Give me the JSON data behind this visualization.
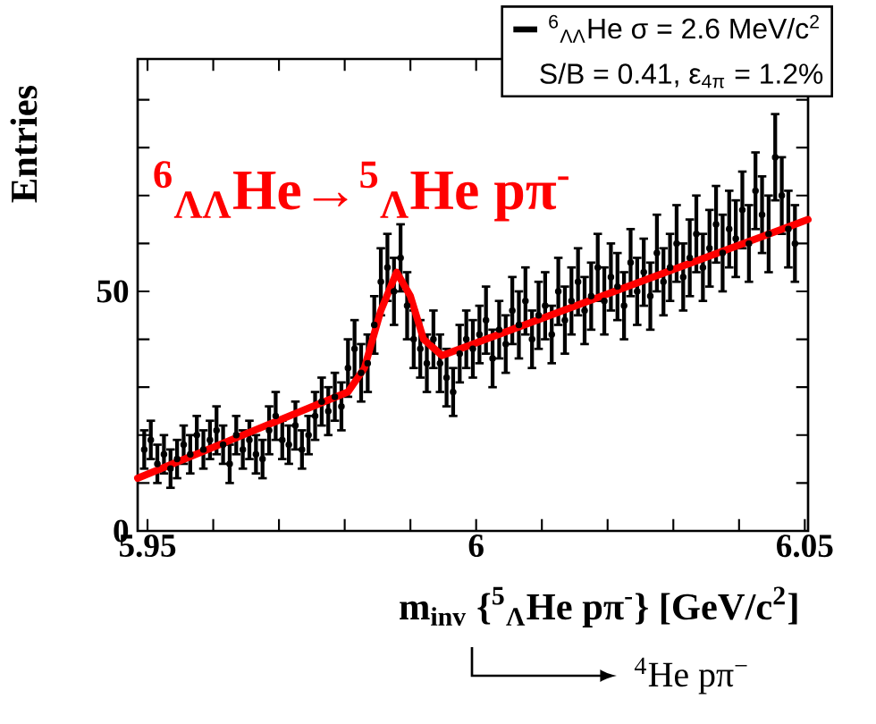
{
  "chart_data": {
    "type": "scatter",
    "xlabel": "m$_{inv}$ {$^{5}$$_{Λ}$He pπ$^{-}$} [GeV/c$^{2}$]",
    "ylabel": "Entries",
    "annotations": [
      "S/B = 0.41, ε$_{4π}$ = 1.2%",
      "$^{6}$$_{ΛΛ}$He→$^{5}$$_{Λ}$He pπ$^{-}$",
      "$^{4}$He pπ$^{−}$"
    ],
    "xlim": [
      5.9485,
      6.0505
    ],
    "ylim": [
      0,
      98.5
    ],
    "xticks": [
      5.95,
      {
        "value": 5.96,
        "label": null
      },
      {
        "value": 5.97,
        "label": null
      },
      {
        "value": 5.98,
        "label": null
      },
      {
        "value": 5.99,
        "label": null
      },
      6,
      {
        "value": 6.01,
        "label": null
      },
      {
        "value": 6.02,
        "label": null
      },
      {
        "value": 6.03,
        "label": null
      },
      {
        "value": 6.04,
        "label": null
      },
      6.05
    ],
    "yticks": [
      0,
      {
        "value": 10,
        "label": null
      },
      {
        "value": 20,
        "label": null
      },
      {
        "value": 30,
        "label": null
      },
      {
        "value": 40,
        "label": null
      },
      50,
      {
        "value": 60,
        "label": null
      },
      {
        "value": 70,
        "label": null
      },
      {
        "value": 80,
        "label": null
      },
      {
        "value": 90,
        "label": null
      }
    ],
    "legend": "top right",
    "grid": false,
    "x": [
      5.9495,
      5.9505,
      5.9515,
      5.9525,
      5.9535,
      5.9545,
      5.9555,
      5.9565,
      5.9575,
      5.9585,
      5.9595,
      5.9605,
      5.9615,
      5.9625,
      5.9635,
      5.9645,
      5.9655,
      5.9665,
      5.9675,
      5.9685,
      5.9695,
      5.9705,
      5.9715,
      5.9725,
      5.9735,
      5.9745,
      5.9755,
      5.9765,
      5.9775,
      5.9785,
      5.9795,
      5.9805,
      5.9815,
      5.9825,
      5.9835,
      5.9845,
      5.9855,
      5.9865,
      5.9875,
      5.9885,
      5.9895,
      5.9905,
      5.9915,
      5.9925,
      5.9935,
      5.9945,
      5.9955,
      5.9965,
      5.9975,
      5.9985,
      5.9995,
      6.0005,
      6.0015,
      6.0025,
      6.0035,
      6.0045,
      6.0055,
      6.0065,
      6.0075,
      6.0085,
      6.0095,
      6.0105,
      6.0115,
      6.0125,
      6.0135,
      6.0145,
      6.0155,
      6.0165,
      6.0175,
      6.0185,
      6.0195,
      6.0205,
      6.0215,
      6.0225,
      6.0235,
      6.0245,
      6.0255,
      6.0265,
      6.0275,
      6.0285,
      6.0295,
      6.0305,
      6.0315,
      6.0325,
      6.0335,
      6.0345,
      6.0355,
      6.0365,
      6.0375,
      6.0385,
      6.0395,
      6.0405,
      6.0415,
      6.0425,
      6.0435,
      6.0445,
      6.0455,
      6.0465,
      6.0475,
      6.0485
    ],
    "series": [
      {
        "name": "$^{6}$$_{ΛΛ}$He σ = 2.6 MeV/c$^{2}$",
        "color": "#000000",
        "values": [
          17,
          19,
          14,
          16,
          13,
          15,
          18,
          16,
          20,
          17,
          19,
          21,
          18,
          14,
          20,
          17,
          19,
          16,
          15,
          21,
          24,
          19,
          18,
          22,
          17,
          20,
          24,
          27,
          25,
          28,
          26,
          34,
          38,
          33,
          35,
          43,
          52,
          55,
          50,
          57,
          47,
          40,
          38,
          35,
          40,
          35,
          32,
          29,
          37,
          40,
          38,
          41,
          44,
          36,
          42,
          39,
          46,
          43,
          48,
          40,
          45,
          47,
          41,
          50,
          44,
          48,
          52,
          46,
          49,
          55,
          48,
          53,
          51,
          47,
          56,
          50,
          54,
          49,
          58,
          52,
          55,
          60,
          53,
          57,
          62,
          55,
          59,
          64,
          58,
          63,
          61,
          67,
          60,
          71,
          66,
          62,
          78,
          70,
          63,
          60
        ],
        "errors": [
          4,
          4,
          4,
          4,
          4,
          4,
          4,
          4,
          4,
          4,
          4,
          5,
          4,
          4,
          4,
          4,
          4,
          4,
          4,
          5,
          5,
          4,
          4,
          5,
          4,
          4,
          5,
          5,
          5,
          5,
          5,
          6,
          6,
          6,
          6,
          6,
          7,
          7,
          7,
          7,
          7,
          6,
          6,
          6,
          6,
          6,
          6,
          5,
          6,
          6,
          6,
          6,
          7,
          6,
          6,
          6,
          7,
          7,
          7,
          6,
          7,
          7,
          6,
          7,
          7,
          7,
          7,
          7,
          7,
          7,
          7,
          7,
          7,
          7,
          7,
          7,
          7,
          7,
          8,
          7,
          7,
          8,
          7,
          8,
          8,
          7,
          8,
          8,
          8,
          8,
          8,
          8,
          8,
          8,
          8,
          8,
          9,
          8,
          8,
          8
        ]
      },
      {
        "type": "line",
        "color": "#ff0000",
        "marker": "none",
        "x": [
          5.9485,
          5.9805,
          5.983,
          5.9855,
          5.9879,
          5.99,
          5.992,
          5.9948,
          6.0505
        ],
        "values": [
          11,
          29,
          34,
          46,
          54,
          49,
          40,
          36.6,
          65
        ]
      }
    ]
  }
}
